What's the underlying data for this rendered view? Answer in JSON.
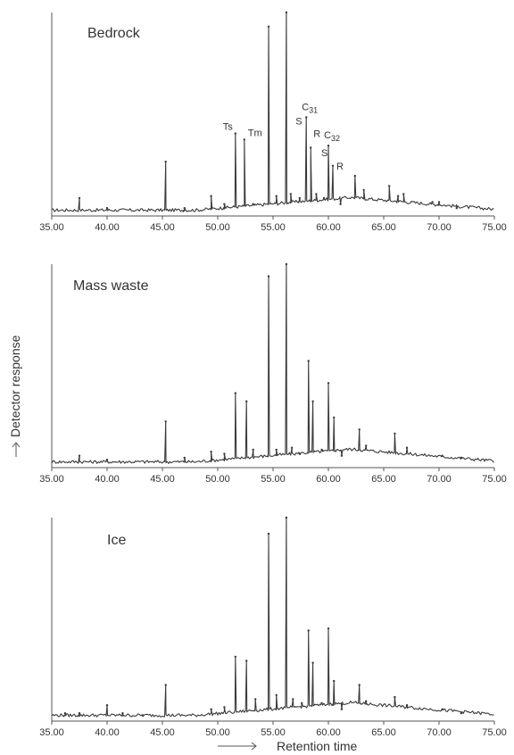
{
  "chart_data": {
    "type": "line",
    "x_axis_title": "Retention time",
    "y_axis_title": "Detector response",
    "xlim": [
      35,
      75
    ],
    "ylim": [
      0,
      100
    ],
    "x_tick_labels": [
      "35.00",
      "40.00",
      "45.00",
      "50.00",
      "55.00",
      "60.00",
      "65.00",
      "70.00",
      "75.00"
    ],
    "x_ticks": [
      35,
      40,
      45,
      50,
      55,
      60,
      65,
      70,
      75
    ],
    "panels": [
      {
        "title": "Bedrock",
        "peaks": [
          {
            "x": 37.5,
            "y": 8
          },
          {
            "x": 40.0,
            "y": 3
          },
          {
            "x": 45.3,
            "y": 26
          },
          {
            "x": 47.0,
            "y": 3
          },
          {
            "x": 49.4,
            "y": 9
          },
          {
            "x": 50.6,
            "y": 5
          },
          {
            "x": 51.6,
            "y": 40
          },
          {
            "x": 52.4,
            "y": 37
          },
          {
            "x": 53.2,
            "y": 5
          },
          {
            "x": 54.6,
            "y": 93
          },
          {
            "x": 55.3,
            "y": 9
          },
          {
            "x": 56.2,
            "y": 100
          },
          {
            "x": 56.6,
            "y": 10
          },
          {
            "x": 57.4,
            "y": 8
          },
          {
            "x": 58.0,
            "y": 48
          },
          {
            "x": 58.4,
            "y": 33
          },
          {
            "x": 58.9,
            "y": 10
          },
          {
            "x": 59.6,
            "y": 8
          },
          {
            "x": 60.0,
            "y": 34
          },
          {
            "x": 60.4,
            "y": 24
          },
          {
            "x": 61.1,
            "y": 5
          },
          {
            "x": 62.4,
            "y": 19
          },
          {
            "x": 63.2,
            "y": 12
          },
          {
            "x": 65.5,
            "y": 14
          },
          {
            "x": 66.3,
            "y": 9
          },
          {
            "x": 66.8,
            "y": 10
          },
          {
            "x": 69.4,
            "y": 6
          },
          {
            "x": 70.0,
            "y": 6
          },
          {
            "x": 71.6,
            "y": 3
          }
        ],
        "annotations": [
          {
            "text": "Ts",
            "x": 51.6,
            "y": 40
          },
          {
            "text": "Tm",
            "x": 52.4,
            "y": 37
          },
          {
            "text": "S",
            "x": 58.0,
            "y": 48
          },
          {
            "text": "R",
            "x": 58.4,
            "y": 33
          },
          {
            "text": "S",
            "x": 60.0,
            "y": 34
          },
          {
            "text": "R",
            "x": 60.4,
            "y": 24
          }
        ],
        "compound_labels": [
          {
            "text": "C",
            "sub": "31",
            "x": 58.0,
            "y": 48
          },
          {
            "text": "C",
            "sub": "32",
            "x": 60.0,
            "y": 34
          }
        ]
      },
      {
        "title": "Mass waste",
        "peaks": [
          {
            "x": 37.5,
            "y": 5
          },
          {
            "x": 40.0,
            "y": 3
          },
          {
            "x": 45.3,
            "y": 22
          },
          {
            "x": 47.0,
            "y": 4
          },
          {
            "x": 49.4,
            "y": 7
          },
          {
            "x": 50.6,
            "y": 6
          },
          {
            "x": 51.6,
            "y": 36
          },
          {
            "x": 52.6,
            "y": 32
          },
          {
            "x": 53.2,
            "y": 8
          },
          {
            "x": 54.6,
            "y": 94
          },
          {
            "x": 55.3,
            "y": 8
          },
          {
            "x": 56.2,
            "y": 100
          },
          {
            "x": 56.7,
            "y": 9
          },
          {
            "x": 57.4,
            "y": 6
          },
          {
            "x": 58.2,
            "y": 52
          },
          {
            "x": 58.6,
            "y": 32
          },
          {
            "x": 59.4,
            "y": 8
          },
          {
            "x": 60.0,
            "y": 41
          },
          {
            "x": 60.5,
            "y": 24
          },
          {
            "x": 61.2,
            "y": 5
          },
          {
            "x": 62.8,
            "y": 18
          },
          {
            "x": 63.4,
            "y": 10
          },
          {
            "x": 66.0,
            "y": 16
          },
          {
            "x": 67.1,
            "y": 9
          },
          {
            "x": 70.3,
            "y": 5
          },
          {
            "x": 72.0,
            "y": 4
          }
        ]
      },
      {
        "title": "Ice",
        "peaks": [
          {
            "x": 36.2,
            "y": 3
          },
          {
            "x": 37.5,
            "y": 3
          },
          {
            "x": 40.0,
            "y": 7
          },
          {
            "x": 41.4,
            "y": 3
          },
          {
            "x": 43.2,
            "y": 2
          },
          {
            "x": 45.3,
            "y": 17
          },
          {
            "x": 49.4,
            "y": 5
          },
          {
            "x": 50.6,
            "y": 6
          },
          {
            "x": 51.6,
            "y": 31
          },
          {
            "x": 52.6,
            "y": 29
          },
          {
            "x": 53.4,
            "y": 10
          },
          {
            "x": 54.6,
            "y": 92
          },
          {
            "x": 55.3,
            "y": 12
          },
          {
            "x": 56.2,
            "y": 100
          },
          {
            "x": 56.8,
            "y": 10
          },
          {
            "x": 57.6,
            "y": 8
          },
          {
            "x": 58.2,
            "y": 44
          },
          {
            "x": 58.6,
            "y": 28
          },
          {
            "x": 59.4,
            "y": 8
          },
          {
            "x": 60.0,
            "y": 45
          },
          {
            "x": 60.5,
            "y": 19
          },
          {
            "x": 61.2,
            "y": 5
          },
          {
            "x": 62.8,
            "y": 17
          },
          {
            "x": 63.4,
            "y": 9
          },
          {
            "x": 66.0,
            "y": 11
          },
          {
            "x": 67.1,
            "y": 7
          },
          {
            "x": 70.3,
            "y": 5
          },
          {
            "x": 72.0,
            "y": 3
          }
        ]
      }
    ]
  }
}
